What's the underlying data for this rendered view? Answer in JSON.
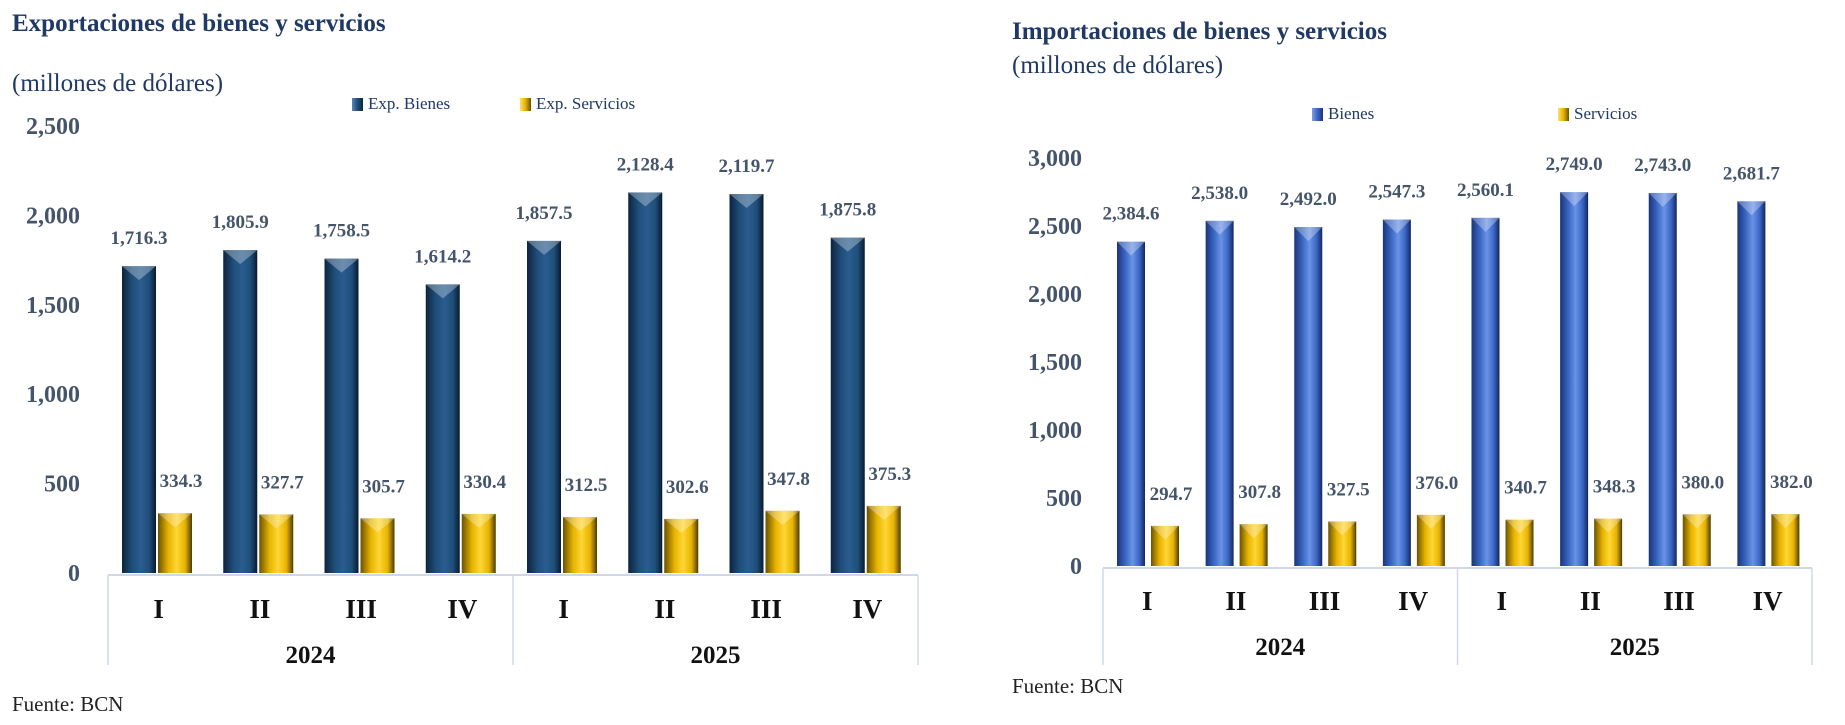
{
  "chart_data": [
    {
      "type": "bar",
      "title": "Exportaciones de bienes y servicios",
      "subtitle": "(millones de dólares)",
      "ylim": [
        0,
        2500
      ],
      "yticks": [
        "0",
        "500",
        "1,000",
        "1,500",
        "2,000",
        "2,500"
      ],
      "ytick_values": [
        0,
        500,
        1000,
        1500,
        2000,
        2500
      ],
      "categories": [
        "I",
        "II",
        "III",
        "IV",
        "I",
        "II",
        "III",
        "IV"
      ],
      "groups": [
        "2024",
        "2025"
      ],
      "legend_position": "top",
      "series": [
        {
          "name": "Exp. Bienes",
          "color": "#1f4e79",
          "values": [
            1716.3,
            1805.9,
            1758.5,
            1614.2,
            1857.5,
            2128.4,
            2119.7,
            1875.8
          ],
          "labels": [
            "1,716.3",
            "1,805.9",
            "1,758.5",
            "1,614.2",
            "1,857.5",
            "2,128.4",
            "2,119.7",
            "1,875.8"
          ]
        },
        {
          "name": "Exp. Servicios",
          "color": "#e6b300",
          "values": [
            334.3,
            327.7,
            305.7,
            330.4,
            312.5,
            302.6,
            347.8,
            375.3
          ],
          "labels": [
            "334.3",
            "327.7",
            "305.7",
            "330.4",
            "312.5",
            "302.6",
            "347.8",
            "375.3"
          ]
        }
      ],
      "source": "Fuente: BCN"
    },
    {
      "type": "bar",
      "title": "Importaciones de bienes y servicios",
      "subtitle": "(millones de dólares)",
      "ylim": [
        0,
        3000
      ],
      "yticks": [
        "0",
        "500",
        "1,000",
        "1,500",
        "2,000",
        "2,500",
        "3,000"
      ],
      "ytick_values": [
        0,
        500,
        1000,
        1500,
        2000,
        2500,
        3000
      ],
      "categories": [
        "I",
        "II",
        "III",
        "IV",
        "I",
        "II",
        "III",
        "IV"
      ],
      "groups": [
        "2024",
        "2025"
      ],
      "legend_position": "top",
      "series": [
        {
          "name": "Bienes",
          "color": "#3a66c4",
          "values": [
            2384.6,
            2538.0,
            2492.0,
            2547.3,
            2560.1,
            2749.0,
            2743.0,
            2681.7
          ],
          "labels": [
            "2,384.6",
            "2,538.0",
            "2,492.0",
            "2,547.3",
            "2,560.1",
            "2,749.0",
            "2,743.0",
            "2,681.7"
          ]
        },
        {
          "name": "Servicios",
          "color": "#e6b300",
          "values": [
            294.7,
            307.8,
            327.5,
            376.0,
            340.7,
            348.3,
            380.0,
            382.0
          ],
          "labels": [
            "294.7",
            "307.8",
            "327.5",
            "376.0",
            "340.7",
            "348.3",
            "380.0",
            "382.0"
          ]
        }
      ],
      "source": "Fuente: BCN"
    }
  ]
}
